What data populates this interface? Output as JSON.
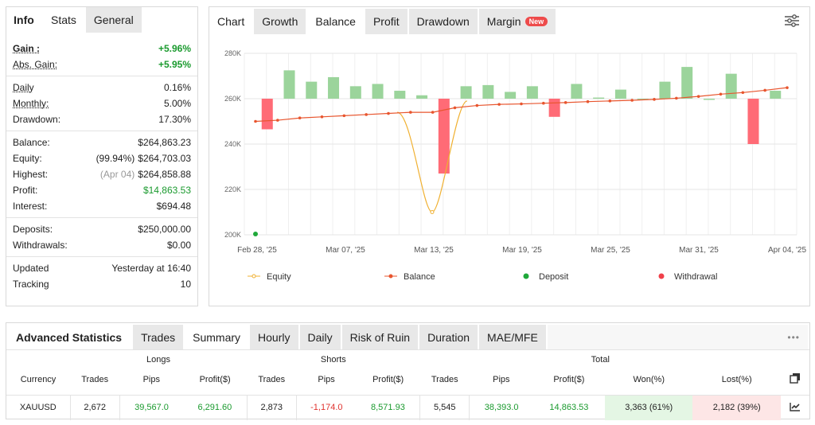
{
  "left_tabs": [
    "Info",
    "Stats",
    "General"
  ],
  "stats": {
    "group1": [
      {
        "label": "Gain :",
        "value": "+5.96%",
        "prefix": "",
        "style": "green",
        "underline": true,
        "bold": true
      },
      {
        "label": "Abs. Gain:",
        "value": "+5.95%",
        "prefix": "",
        "style": "green",
        "underline": true,
        "bold": false
      }
    ],
    "group2": [
      {
        "label": "Daily",
        "value": "0.16%",
        "prefix": "",
        "style": "",
        "underline": true
      },
      {
        "label": "Monthly:",
        "value": "5.00%",
        "prefix": "",
        "style": "",
        "underline": true
      },
      {
        "label": "Drawdown:",
        "value": "17.30%",
        "prefix": "",
        "style": "",
        "underline": false
      }
    ],
    "group3": [
      {
        "label": "Balance:",
        "value": "$264,863.23",
        "prefix": "",
        "style": ""
      },
      {
        "label": "Equity:",
        "value": "$264,703.03",
        "prefix": "(99.94%)",
        "style": ""
      },
      {
        "label": "Highest:",
        "value": "$264,858.88",
        "prefix": "(Apr 04)",
        "style": "muted-prefix"
      },
      {
        "label": "Profit:",
        "value": "$14,863.53",
        "prefix": "",
        "style": "green"
      },
      {
        "label": "Interest:",
        "value": "$694.48",
        "prefix": "",
        "style": ""
      }
    ],
    "group4": [
      {
        "label": "Deposits:",
        "value": "$250,000.00",
        "prefix": "",
        "style": ""
      },
      {
        "label": "Withdrawals:",
        "value": "$0.00",
        "prefix": "",
        "style": ""
      }
    ],
    "group5": [
      {
        "label": "Updated",
        "value": "Yesterday at 16:40",
        "prefix": "",
        "style": ""
      },
      {
        "label": "Tracking",
        "value": "10",
        "prefix": "",
        "style": ""
      }
    ]
  },
  "chart_tabs": {
    "title": "Chart",
    "items": [
      "Growth",
      "Balance",
      "Profit",
      "Drawdown",
      "Margin"
    ],
    "badge": "New",
    "active": "Balance"
  },
  "chart_data": {
    "type": "bar",
    "y_ticks": [
      "280K",
      "260K",
      "240K",
      "220K",
      "200K"
    ],
    "ylim": [
      200000,
      280000
    ],
    "x_ticks": [
      "Feb 28, '25",
      "Mar 07, '25",
      "Mar 13, '25",
      "Mar 19, '25",
      "Mar 25, '25",
      "Mar 31, '25",
      "Apr 04, '25"
    ],
    "bars": [
      {
        "value": -13500,
        "color": "#ff6b76"
      },
      {
        "value": 12500,
        "color": "#9bd49b"
      },
      {
        "value": 7500,
        "color": "#9bd49b"
      },
      {
        "value": 9500,
        "color": "#9bd49b"
      },
      {
        "value": 5500,
        "color": "#9bd49b"
      },
      {
        "value": 6500,
        "color": "#9bd49b"
      },
      {
        "value": 3500,
        "color": "#9bd49b"
      },
      {
        "value": 1500,
        "color": "#9bd49b"
      },
      {
        "value": -33000,
        "color": "#ff6b76"
      },
      {
        "value": 5500,
        "color": "#9bd49b"
      },
      {
        "value": 6000,
        "color": "#9bd49b"
      },
      {
        "value": 3000,
        "color": "#9bd49b"
      },
      {
        "value": 5500,
        "color": "#9bd49b"
      },
      {
        "value": -8000,
        "color": "#ff6b76"
      },
      {
        "value": 6500,
        "color": "#9bd49b"
      },
      {
        "value": 500,
        "color": "#9bd49b"
      },
      {
        "value": 4000,
        "color": "#9bd49b"
      },
      {
        "value": 0,
        "color": "#9bd49b"
      },
      {
        "value": 7500,
        "color": "#9bd49b"
      },
      {
        "value": 14000,
        "color": "#9bd49b"
      },
      {
        "value": -500,
        "color": "#9bd49b"
      },
      {
        "value": 11000,
        "color": "#9bd49b"
      },
      {
        "value": -20000,
        "color": "#ff6b76"
      },
      {
        "value": 3500,
        "color": "#9bd49b"
      }
    ],
    "balance": [
      250000,
      250500,
      251500,
      252000,
      252500,
      253000,
      253500,
      254000,
      254000,
      256000,
      257000,
      257500,
      257700,
      258000,
      258300,
      258700,
      259000,
      259300,
      259700,
      260200,
      261000,
      262000,
      262700,
      263700,
      264863
    ],
    "equity": [
      210000
    ],
    "deposit_point": 200000,
    "legend": [
      "Equity",
      "Balance",
      "Deposit",
      "Withdrawal"
    ],
    "colors": {
      "balance": "#e8552e",
      "equity": "#f0b030",
      "deposit": "#1fa83a",
      "withdrawal": "#f0404a"
    }
  },
  "adv": {
    "title": "Advanced Statistics",
    "tabs": [
      "Trades",
      "Summary",
      "Hourly",
      "Daily",
      "Risk of Ruin",
      "Duration",
      "MAE/MFE"
    ],
    "active": "Summary",
    "more": "•••",
    "groups": {
      "longs": "Longs",
      "shorts": "Shorts",
      "total": "Total"
    },
    "headers": [
      "Currency",
      "Trades",
      "Pips",
      "Profit($)",
      "Trades",
      "Pips",
      "Profit($)",
      "Trades",
      "Pips",
      "Profit($)",
      "Won(%)",
      "Lost(%)"
    ],
    "row": [
      "XAUUSD",
      "2,672",
      "39,567.0",
      "6,291.60",
      "2,873",
      "-1,174.0",
      "8,571.93",
      "5,545",
      "38,393.0",
      "14,863.53",
      "3,363 (61%)",
      "2,182 (39%)"
    ]
  }
}
